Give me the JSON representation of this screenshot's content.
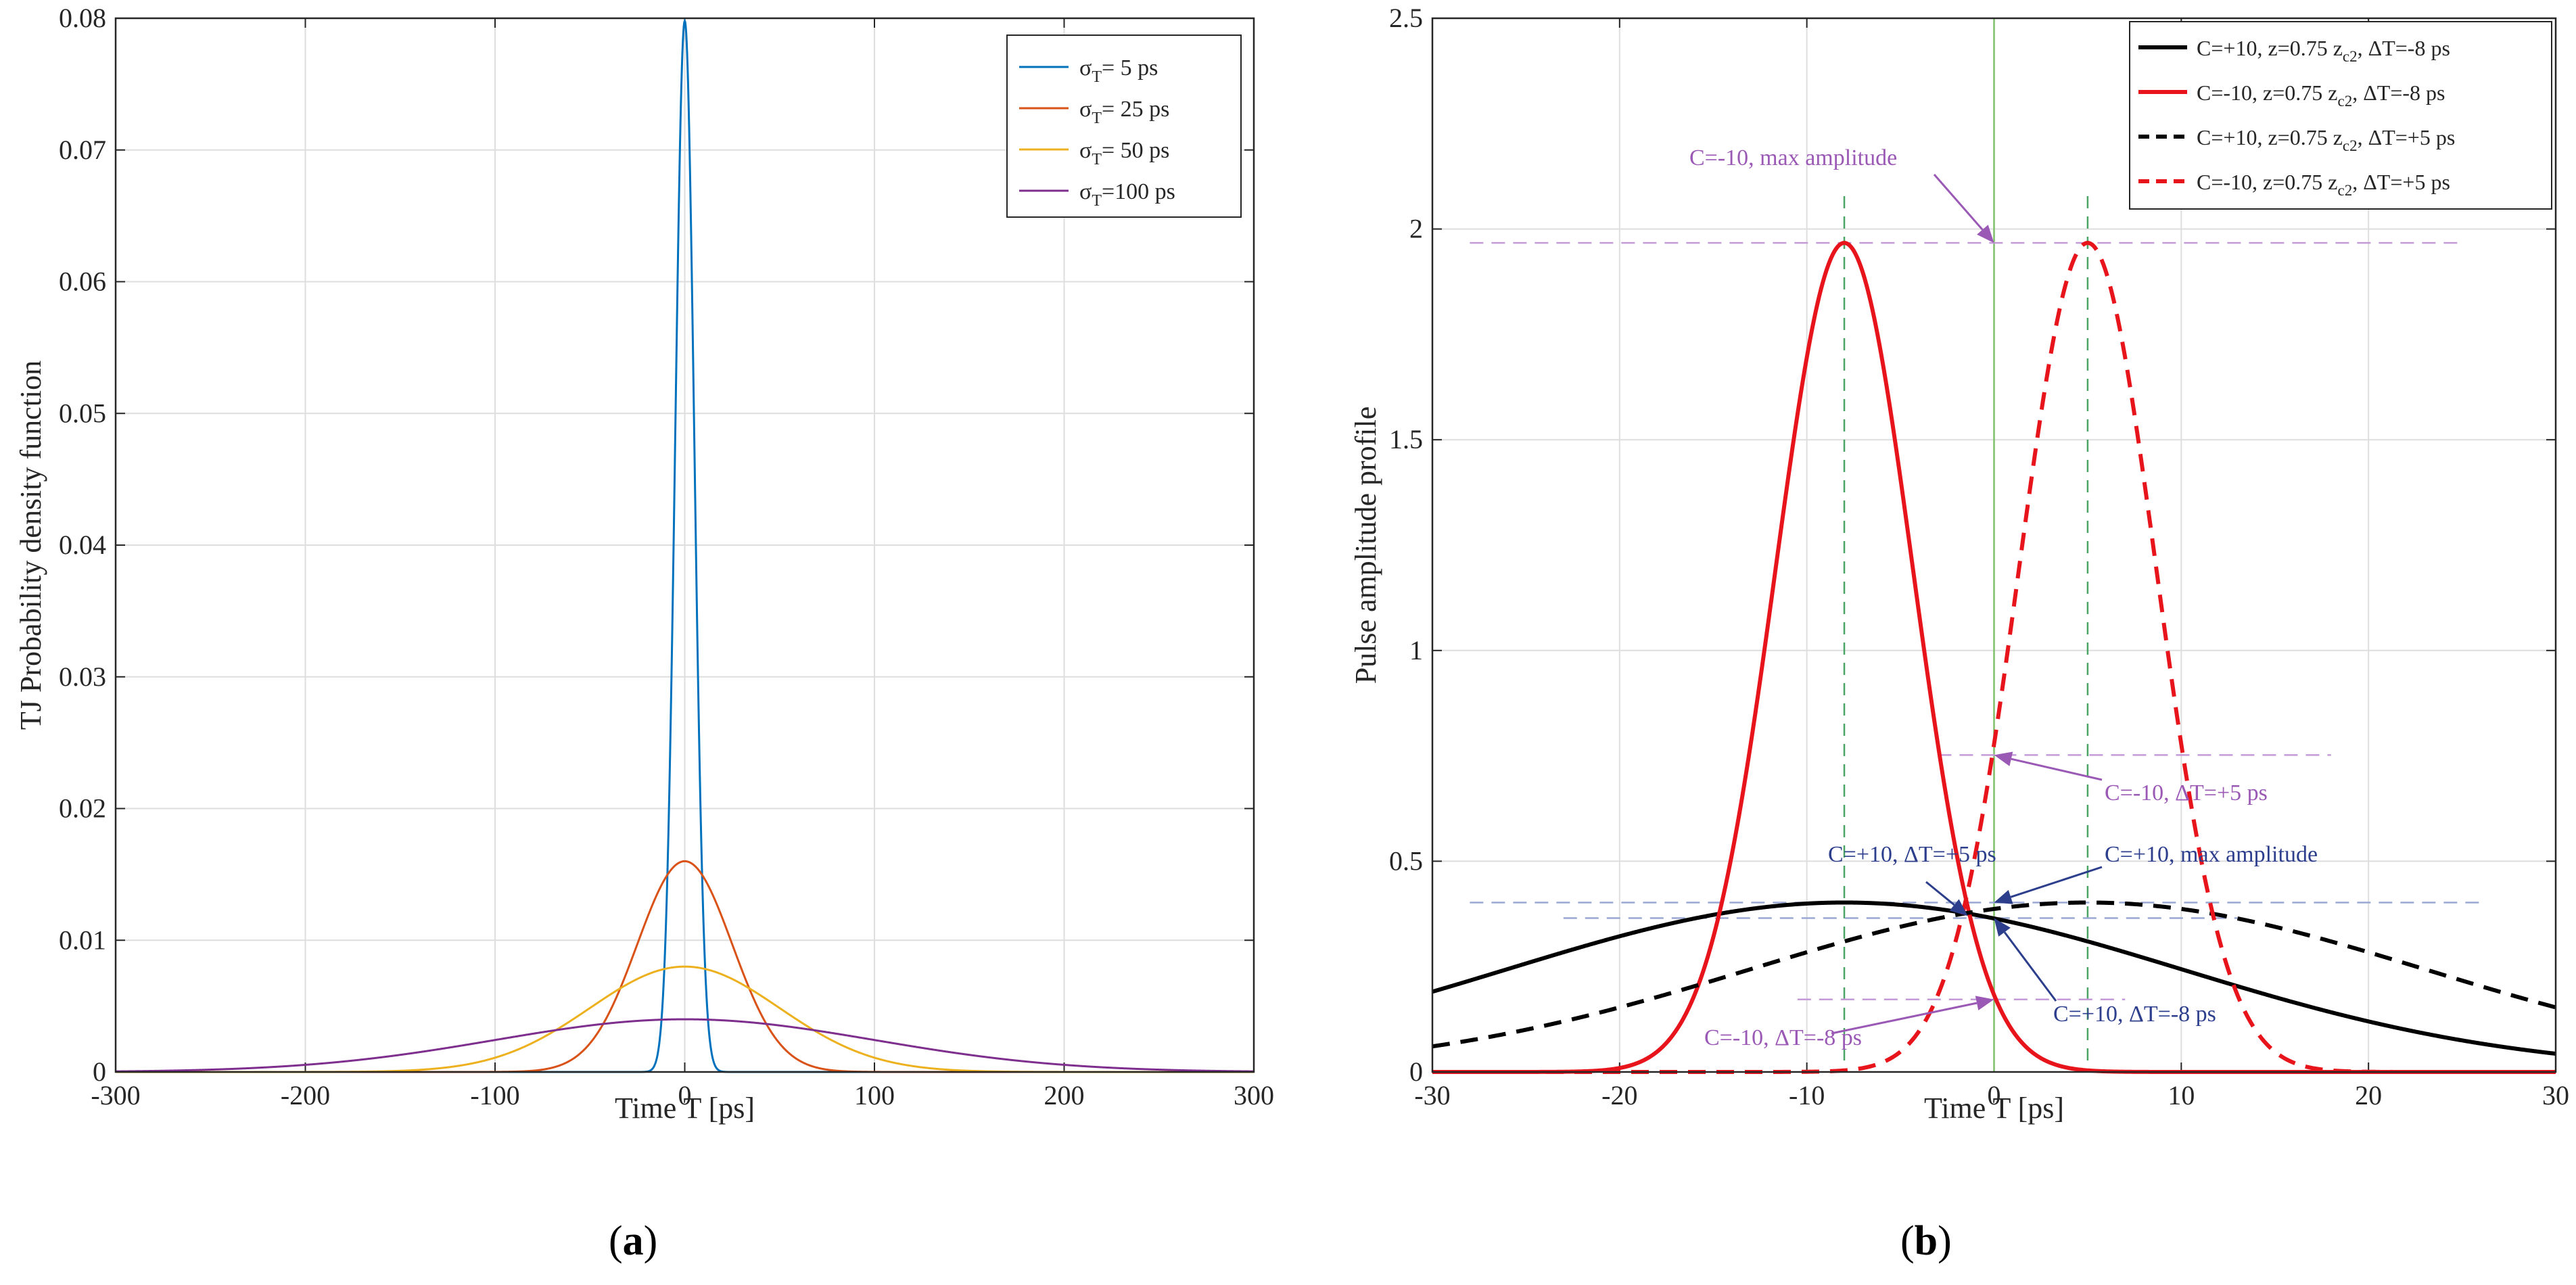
{
  "chart_data": [
    {
      "type": "line",
      "panel": "a",
      "xlabel": "Time T [ps]",
      "ylabel": "TJ Probability density function",
      "xlim": [
        -300,
        300
      ],
      "ylim": [
        0,
        0.08
      ],
      "xticks": [
        -300,
        -200,
        -100,
        0,
        100,
        200,
        300
      ],
      "xtick_labels": [
        "-300",
        "-200",
        "-100",
        "0",
        "100",
        "200",
        "300"
      ],
      "yticks": [
        0,
        0.01,
        0.02,
        0.03,
        0.04,
        0.05,
        0.06,
        0.07,
        0.08
      ],
      "ytick_labels": [
        "0",
        "0.01",
        "0.02",
        "0.03",
        "0.04",
        "0.05",
        "0.06",
        "0.07",
        "0.08"
      ],
      "grid": true,
      "legend_position": "top-right",
      "series": [
        {
          "name": "σT= 5 ps",
          "legend_main": "σ",
          "legend_sub": "T",
          "legend_rest": "=  5 ps",
          "sigma_ps": 5,
          "peak": 0.0798,
          "color": "#0072BD"
        },
        {
          "name": "σT= 25 ps",
          "legend_main": "σ",
          "legend_sub": "T",
          "legend_rest": "= 25 ps",
          "sigma_ps": 25,
          "peak": 0.016,
          "color": "#D95319"
        },
        {
          "name": "σT= 50 ps",
          "legend_main": "σ",
          "legend_sub": "T",
          "legend_rest": "= 50 ps",
          "sigma_ps": 50,
          "peak": 0.008,
          "color": "#EDB120"
        },
        {
          "name": "σT=100 ps",
          "legend_main": "σ",
          "legend_sub": "T",
          "legend_rest": "=100 ps",
          "sigma_ps": 100,
          "peak": 0.004,
          "color": "#7E2F8E"
        }
      ]
    },
    {
      "type": "line",
      "panel": "b",
      "xlabel": "Time T [ps]",
      "ylabel": "Pulse amplitude profile",
      "xlim": [
        -30,
        30
      ],
      "ylim": [
        0,
        2.5
      ],
      "xticks": [
        -30,
        -20,
        -10,
        0,
        10,
        20,
        30
      ],
      "xtick_labels": [
        "-30",
        "-20",
        "-10",
        "0",
        "10",
        "20",
        "30"
      ],
      "yticks": [
        0,
        0.5,
        1,
        1.5,
        2,
        2.5
      ],
      "ytick_labels": [
        "0",
        "0.5",
        "1",
        "1.5",
        "2",
        "2.5"
      ],
      "grid": true,
      "legend_position": "top-right",
      "series": [
        {
          "name": "C=+10, z=0.75 zc2, ΔT=-8 ps",
          "legend_pre": "C=+10, z=0.75 z",
          "legend_sub": "c2",
          "legend_post": ", ΔT=-8 ps",
          "color": "#000000",
          "dash": "solid",
          "peak": 0.402,
          "center_ps": -8,
          "sigma_ps": 18
        },
        {
          "name": "C=-10, z=0.75 zc2, ΔT=-8 ps",
          "legend_pre": "C=-10, z=0.75 z",
          "legend_sub": "c2",
          "legend_post": ", ΔT=-8 ps",
          "color": "#E8141C",
          "dash": "solid",
          "peak": 1.967,
          "center_ps": -8,
          "sigma_ps": 3.67
        },
        {
          "name": "C=+10, z=0.75 zc2, ΔT=+5 ps",
          "legend_pre": "C=+10, z=0.75 z",
          "legend_sub": "c2",
          "legend_post": ", ΔT=+5 ps",
          "color": "#000000",
          "dash": "dashed",
          "peak": 0.402,
          "center_ps": 5,
          "sigma_ps": 18
        },
        {
          "name": "C=-10, z=0.75 zc2, ΔT=+5 ps",
          "legend_pre": "C=-10, z=0.75 z",
          "legend_sub": "c2",
          "legend_post": ", ΔT=+5 ps",
          "color": "#E8141C",
          "dash": "dashed",
          "peak": 1.967,
          "center_ps": 5,
          "sigma_ps": 3.67
        }
      ],
      "reference_lines": {
        "vertical_dashed_green_ps": [
          -8,
          5
        ],
        "vertical_solid_green_ps": [
          0
        ],
        "horizontal_purple": [
          {
            "y": 1.967,
            "x_from": -28,
            "x_to": 25
          },
          {
            "y": 0.752,
            "x_from": -3,
            "x_to": 18
          },
          {
            "y": 0.172,
            "x_from": -10.5,
            "x_to": 7
          }
        ],
        "horizontal_blue": [
          {
            "y": 0.402,
            "x_from": -28,
            "x_to": 26
          },
          {
            "y": 0.365,
            "x_from": -23,
            "x_to": 13
          }
        ]
      },
      "annotations": [
        {
          "text": "C=-10, max amplitude",
          "color": "#9B59B6",
          "point": [
            0,
            1.967
          ]
        },
        {
          "text": "C=-10, ΔT=+5 ps",
          "color": "#9B59B6",
          "point": [
            0,
            0.752
          ]
        },
        {
          "text": "C=+10, ΔT=+5 ps",
          "color": "#2C3E8C",
          "point": [
            -1.4,
            0.37
          ]
        },
        {
          "text": "C=+10, max amplitude",
          "color": "#2C3E8C",
          "point": [
            0,
            0.402
          ]
        },
        {
          "text": "C=-10, ΔT=-8 ps",
          "color": "#9B59B6",
          "point": [
            0,
            0.172
          ]
        },
        {
          "text": "C=+10, ΔT=-8 ps",
          "color": "#2C3E8C",
          "point": [
            0,
            0.365
          ]
        }
      ]
    }
  ],
  "panel_labels": {
    "a": {
      "open": "(",
      "letter": "a",
      "close": ")"
    },
    "b": {
      "open": "(",
      "letter": "b",
      "close": ")"
    }
  }
}
